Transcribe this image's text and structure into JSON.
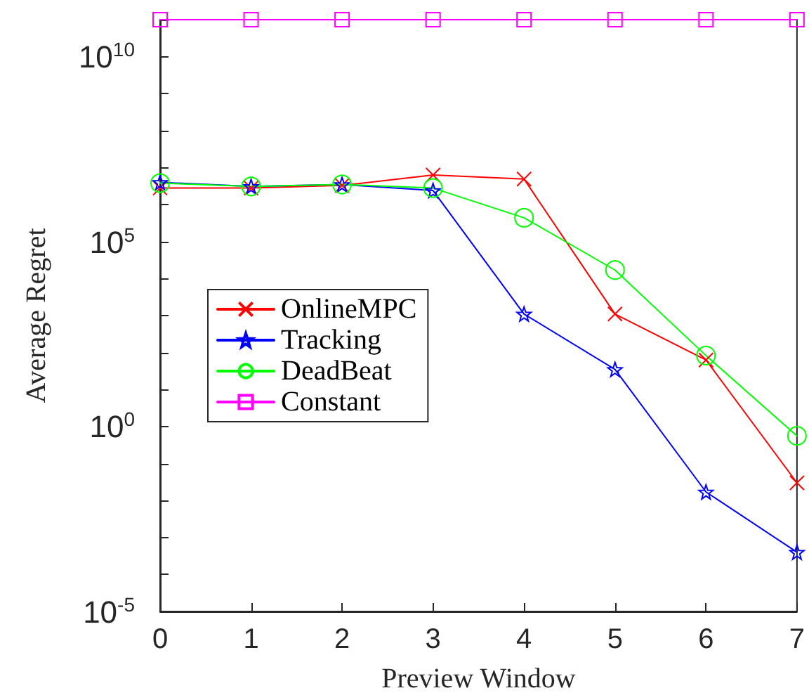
{
  "chart_data": {
    "type": "line",
    "xlabel": "Preview Window",
    "ylabel": "Average Regret",
    "x": [
      0,
      1,
      2,
      3,
      4,
      5,
      6,
      7
    ],
    "xlim": [
      0,
      7
    ],
    "xticks": [
      0,
      1,
      2,
      3,
      4,
      5,
      6,
      7
    ],
    "log": "y",
    "ylim": [
      1e-05,
      100000000000.0
    ],
    "yticks": [
      {
        "value": 1e-05,
        "label": "10$^{-5}$"
      },
      {
        "value": 0.0001,
        "label": null
      },
      {
        "value": 0.001,
        "label": null
      },
      {
        "value": 0.01,
        "label": null
      },
      {
        "value": 0.1,
        "label": null
      },
      {
        "value": 1,
        "label": "10$^{0}$"
      },
      {
        "value": 10,
        "label": null
      },
      {
        "value": 100,
        "label": null
      },
      {
        "value": 1000,
        "label": null
      },
      {
        "value": 10000,
        "label": null
      },
      {
        "value": 100000,
        "label": "10$^{5}$"
      },
      {
        "value": 1000000.0,
        "label": null
      },
      {
        "value": 10000000.0,
        "label": null
      },
      {
        "value": 100000000.0,
        "label": null
      },
      {
        "value": 1000000000.0,
        "label": null
      },
      {
        "value": 10000000000.0,
        "label": "10$^{10}$"
      },
      {
        "value": 100000000000.0,
        "label": null
      }
    ],
    "grid": false,
    "legend": "left",
    "line_style": "solid",
    "series": [
      {
        "name": "OnlineMPC",
        "color": "#ff0000",
        "marker": "cross",
        "values": [
          2800000.0,
          2800000.0,
          3300000.0,
          6300000.0,
          4900000.0,
          1100,
          63,
          0.03
        ]
      },
      {
        "name": "Tracking",
        "color": "#0000ff",
        "marker": "star",
        "values": [
          4000000.0,
          3100000.0,
          3500000.0,
          2400000.0,
          1100,
          35,
          0.017,
          0.0004
        ]
      },
      {
        "name": "DeadBeat",
        "color": "#00ff00",
        "marker": "circle",
        "values": [
          3800000.0,
          3100000.0,
          3500000.0,
          2800000.0,
          440000.0,
          17000.0,
          83,
          0.56
        ]
      },
      {
        "name": "Constant",
        "color": "#ff00ff",
        "marker": "square",
        "values": [
          100000000000.0,
          100000000000.0,
          100000000000.0,
          100000000000.0,
          100000000000.0,
          100000000000.0,
          100000000000.0,
          100000000000.0
        ]
      }
    ]
  }
}
